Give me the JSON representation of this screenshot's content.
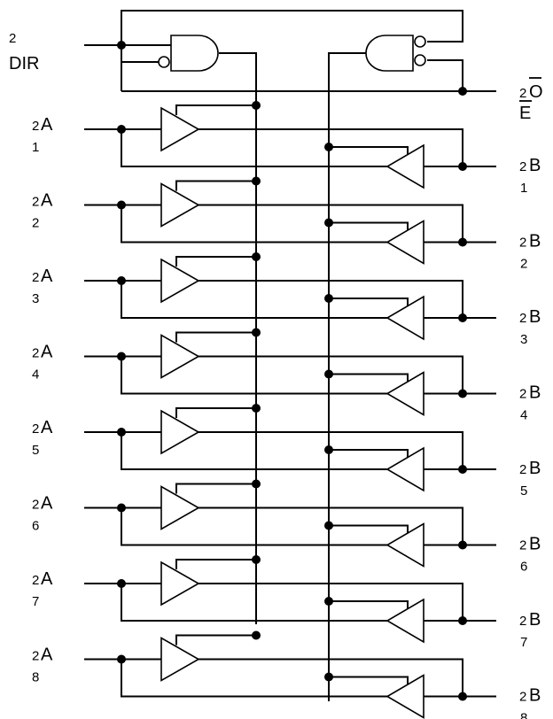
{
  "dir_pin": {
    "prefix": "2",
    "label": "DIR"
  },
  "oe_pin": {
    "prefix": "2",
    "label": "O",
    "label_line2": "E"
  },
  "a_pins": [
    {
      "prefix": "2",
      "letter": "A",
      "index": "1"
    },
    {
      "prefix": "2",
      "letter": "A",
      "index": "2"
    },
    {
      "prefix": "2",
      "letter": "A",
      "index": "3"
    },
    {
      "prefix": "2",
      "letter": "A",
      "index": "4"
    },
    {
      "prefix": "2",
      "letter": "A",
      "index": "5"
    },
    {
      "prefix": "2",
      "letter": "A",
      "index": "6"
    },
    {
      "prefix": "2",
      "letter": "A",
      "index": "7"
    },
    {
      "prefix": "2",
      "letter": "A",
      "index": "8"
    }
  ],
  "b_pins": [
    {
      "prefix": "2",
      "letter": "B",
      "index": "1"
    },
    {
      "prefix": "2",
      "letter": "B",
      "index": "2"
    },
    {
      "prefix": "2",
      "letter": "B",
      "index": "3"
    },
    {
      "prefix": "2",
      "letter": "B",
      "index": "4"
    },
    {
      "prefix": "2",
      "letter": "B",
      "index": "5"
    },
    {
      "prefix": "2",
      "letter": "B",
      "index": "6"
    },
    {
      "prefix": "2",
      "letter": "B",
      "index": "7"
    },
    {
      "prefix": "2",
      "letter": "B",
      "index": "8"
    }
  ]
}
